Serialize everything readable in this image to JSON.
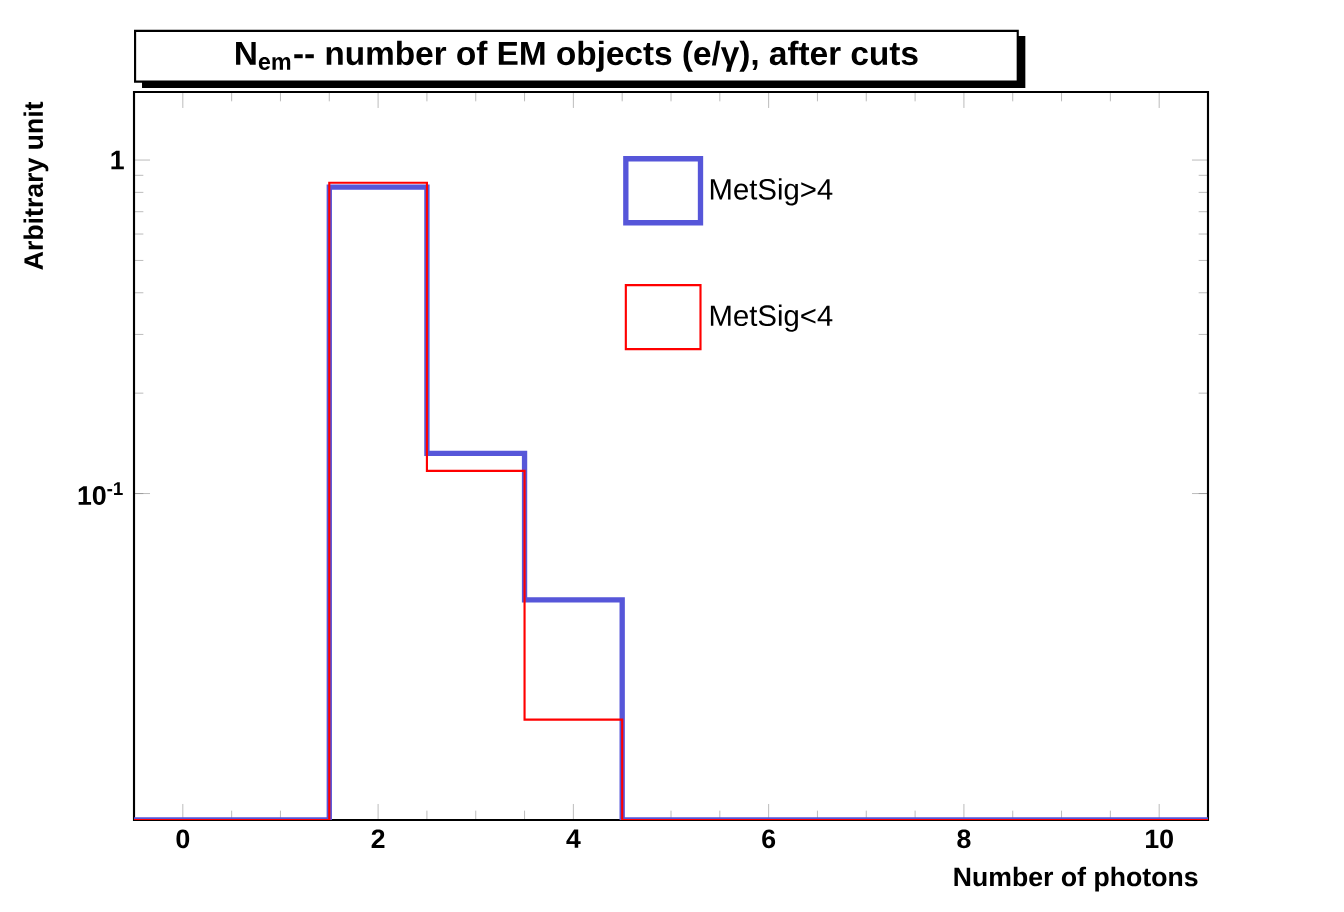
{
  "chart_data": {
    "type": "histogram",
    "title": "N$_{em}$-- number of EM objects (e/γ), after cuts",
    "xlabel": "Number of photons",
    "ylabel": "Arbitrary unit",
    "bins": [
      -0.5,
      0.5,
      1.5,
      2.5,
      3.5,
      4.5,
      5.5,
      6.5,
      7.5,
      8.5,
      9.5,
      10.5
    ],
    "series": [
      {
        "name": "MetSig>4",
        "color": "#5656d9",
        "values": [
          null,
          null,
          0.83,
          0.132,
          0.048,
          null,
          null,
          null,
          null,
          null,
          null
        ]
      },
      {
        "name": "MetSig<4",
        "color": "#ff0000",
        "values": [
          null,
          null,
          0.855,
          0.117,
          0.021,
          null,
          null,
          null,
          null,
          null,
          null
        ]
      }
    ],
    "xlim": [
      -0.5,
      10.5
    ],
    "ylim": [
      0.0105,
      1.6
    ],
    "xticks": [
      0,
      2,
      4,
      6,
      8,
      10
    ],
    "yticks": [
      {
        "value": 0.1,
        "label": "10$^{-1}$"
      },
      {
        "value": 1,
        "label": "1"
      }
    ],
    "log": "y",
    "legend": "top right",
    "grid": false
  }
}
